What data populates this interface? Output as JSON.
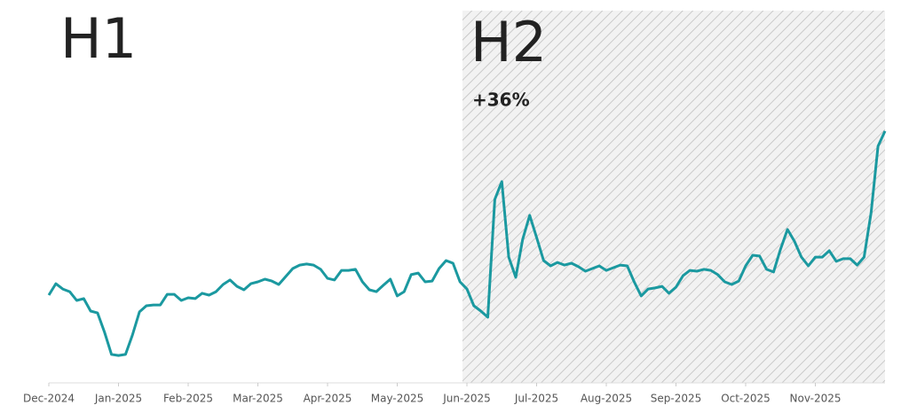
{
  "chart_data": {
    "type": "line",
    "annotations": {
      "h1": "H1",
      "h2": "H2",
      "change": "+36%"
    },
    "x": [
      0,
      0.1,
      0.2,
      0.3,
      0.4,
      0.5,
      0.6,
      0.7,
      0.8,
      0.9,
      1,
      1.1,
      1.2,
      1.3,
      1.4,
      1.5,
      1.6,
      1.7,
      1.8,
      1.9,
      2,
      2.1,
      2.2,
      2.3,
      2.4,
      2.5,
      2.6,
      2.7,
      2.8,
      2.9,
      3,
      3.1,
      3.2,
      3.3,
      3.4,
      3.5,
      3.6,
      3.7,
      3.8,
      3.9,
      4,
      4.1,
      4.2,
      4.3,
      4.4,
      4.5,
      4.6,
      4.7,
      4.8,
      4.9,
      5,
      5.1,
      5.2,
      5.3,
      5.4,
      5.5,
      5.6,
      5.7,
      5.8,
      5.9,
      6,
      6.1,
      6.2,
      6.3,
      6.4,
      6.5,
      6.6,
      6.7,
      6.8,
      6.9,
      7,
      7.1,
      7.2,
      7.3,
      7.4,
      7.5,
      7.6,
      7.7,
      7.8,
      7.9,
      8,
      8.1,
      8.2,
      8.3,
      8.4,
      8.5,
      8.6,
      8.7,
      8.8,
      8.9,
      9,
      9.1,
      9.2,
      9.3,
      9.4,
      9.5,
      9.6,
      9.7,
      9.8,
      9.9,
      10,
      10.1,
      10.2,
      10.3,
      10.4,
      10.5,
      10.6,
      10.7,
      10.8,
      10.9,
      11,
      11.1,
      11.2,
      11.3,
      11.4,
      11.5,
      11.6,
      11.7,
      11.8,
      11.9,
      12
    ],
    "series": [
      {
        "color": "#1b99a0",
        "values": [
          33,
          37.3,
          35.3,
          34.3,
          31,
          31.7,
          27,
          26.3,
          19,
          10.7,
          10.3,
          10.7,
          18,
          26.7,
          29,
          29.3,
          29.3,
          33.3,
          33.3,
          31,
          32,
          31.7,
          33.7,
          33,
          34.3,
          37,
          38.7,
          36.3,
          35,
          37.3,
          38,
          39,
          38.3,
          37,
          40,
          43,
          44.3,
          44.7,
          44.3,
          42.7,
          39.3,
          38.7,
          42.3,
          42.3,
          42.7,
          38,
          35,
          34.3,
          36.7,
          39,
          32.7,
          34.3,
          40.7,
          41.3,
          38,
          38.3,
          43,
          46,
          45,
          38,
          35.3,
          29,
          27,
          24.7,
          69,
          75.7,
          47.3,
          39.7,
          54,
          63,
          54.7,
          46,
          44,
          45.3,
          44.3,
          45,
          43.7,
          42,
          43,
          44,
          42.3,
          43.3,
          44.3,
          44,
          38,
          32.7,
          35.3,
          35.7,
          36.3,
          33.7,
          36,
          40.3,
          42.3,
          42,
          42.7,
          42.3,
          40.7,
          38,
          37,
          38.3,
          44,
          48,
          47.7,
          42.7,
          41.7,
          50.3,
          57.7,
          53.3,
          47.3,
          44,
          47.3,
          47.3,
          49.7,
          45.7,
          46.7,
          46.7,
          44.3,
          47.3,
          64,
          89,
          94.7
        ]
      }
    ],
    "xlim": [
      0,
      12
    ],
    "xticks": [
      {
        "value": 0,
        "label": "Dec-2024"
      },
      {
        "value": 1,
        "label": "Jan-2025"
      },
      {
        "value": 2,
        "label": "Feb-2025"
      },
      {
        "value": 3,
        "label": "Mar-2025"
      },
      {
        "value": 4,
        "label": "Apr-2025"
      },
      {
        "value": 5,
        "label": "May-2025"
      },
      {
        "value": 6,
        "label": "Jun-2025"
      },
      {
        "value": 7,
        "label": "Jul-2025"
      },
      {
        "value": 8,
        "label": "Aug-2025"
      },
      {
        "value": 9,
        "label": "Sep-2025"
      },
      {
        "value": 10,
        "label": "Oct-2025"
      },
      {
        "value": 11,
        "label": "Nov-2025"
      }
    ],
    "ylim": [
      0,
      140
    ],
    "grid": false
  }
}
